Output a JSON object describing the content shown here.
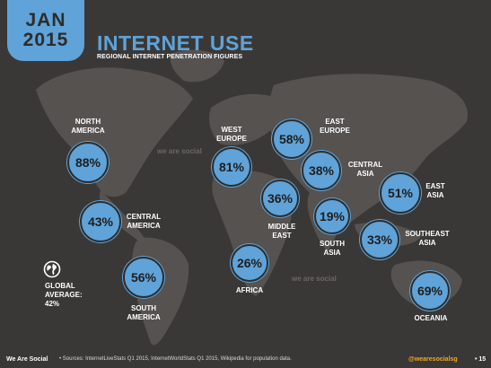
{
  "badge": {
    "month": "JAN",
    "year": "2015"
  },
  "header": {
    "title": "INTERNET USE",
    "subtitle": "REGIONAL INTERNET PENETRATION FIGURES"
  },
  "chart_data": {
    "type": "table",
    "title": "INTERNET USE",
    "subtitle": "REGIONAL INTERNET PENETRATION FIGURES",
    "categories": [
      "North America",
      "Central America",
      "South America",
      "West Europe",
      "East Europe",
      "Central Asia",
      "Middle East",
      "Africa",
      "South Asia",
      "East Asia",
      "Southeast Asia",
      "Oceania"
    ],
    "regions": [
      {
        "id": "north-america",
        "label": "NORTH\nAMERICA",
        "value": 88,
        "display": "88%"
      },
      {
        "id": "central-america",
        "label": "CENTRAL\nAMERICA",
        "value": 43,
        "display": "43%"
      },
      {
        "id": "south-america",
        "label": "SOUTH\nAMERICA",
        "value": 56,
        "display": "56%"
      },
      {
        "id": "west-europe",
        "label": "WEST\nEUROPE",
        "value": 81,
        "display": "81%"
      },
      {
        "id": "east-europe",
        "label": "EAST\nEUROPE",
        "value": 58,
        "display": "58%"
      },
      {
        "id": "central-asia",
        "label": "CENTRAL\nASIA",
        "value": 38,
        "display": "38%"
      },
      {
        "id": "middle-east",
        "label": "MIDDLE\nEAST",
        "value": 36,
        "display": "36%"
      },
      {
        "id": "africa",
        "label": "AFRICA",
        "value": 26,
        "display": "26%"
      },
      {
        "id": "south-asia",
        "label": "SOUTH\nASIA",
        "value": 19,
        "display": "19%"
      },
      {
        "id": "east-asia",
        "label": "EAST\nASIA",
        "value": 51,
        "display": "51%"
      },
      {
        "id": "southeast-asia",
        "label": "SOUTHEAST\nASIA",
        "value": 33,
        "display": "33%"
      },
      {
        "id": "oceania",
        "label": "OCEANIA",
        "value": 69,
        "display": "69%"
      }
    ],
    "global_average": {
      "label": "GLOBAL\nAVERAGE:\n42%",
      "value": 42
    }
  },
  "watermark": "we\nare\nsocial",
  "footer": {
    "brand": "We Are Social",
    "source": "•  Sources: InternetLiveStats Q1 2015, InternetWorldStats Q1 2015, Wikipedia for population data.",
    "handle": "@wearesocialsg",
    "page": "•  15"
  },
  "colors": {
    "accent": "#5fa3d9",
    "background": "#3a3836",
    "land": "#555250",
    "handle": "#f5a623"
  }
}
